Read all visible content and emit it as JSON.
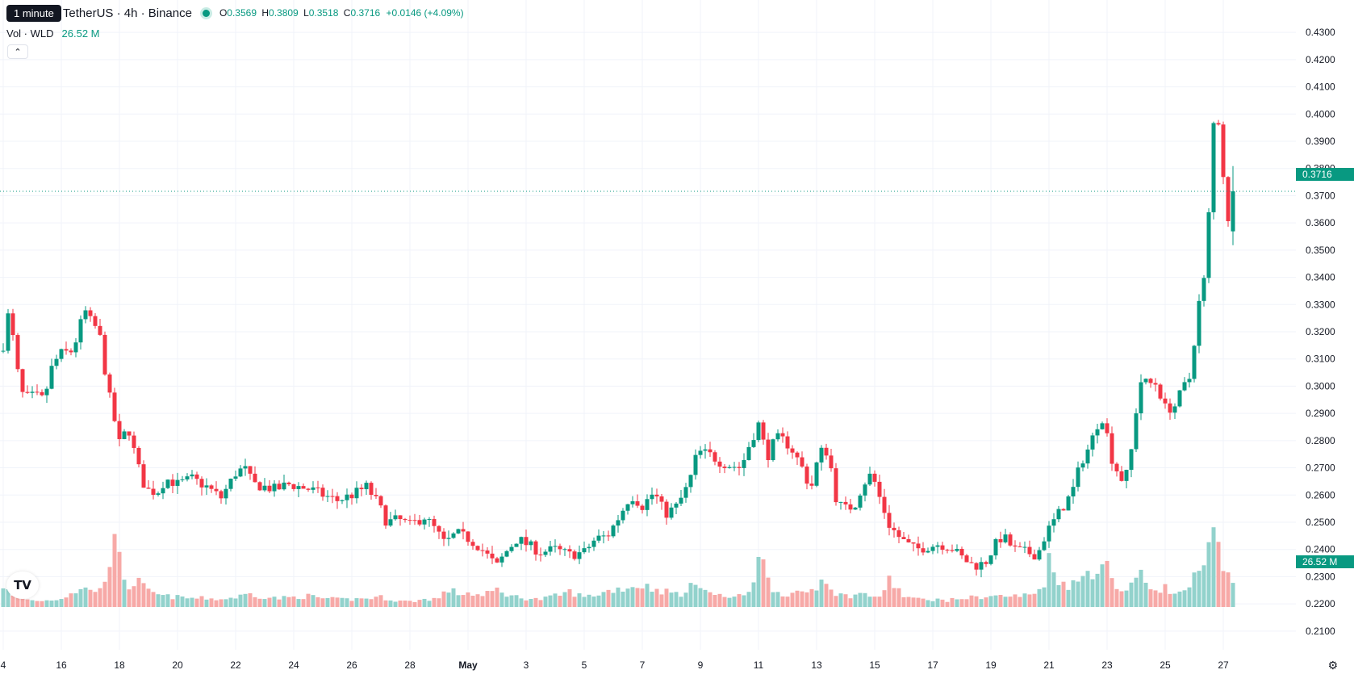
{
  "legend": {
    "tooltip": "1 minute",
    "symbol": "TetherUS · 4h · Binance",
    "o_label": "O",
    "o": "0.3569",
    "h_label": "H",
    "h": "0.3809",
    "l_label": "L",
    "l": "0.3518",
    "c_label": "C",
    "c": "0.3716",
    "change": "+0.0146 (+4.09%)",
    "vol_label": "Vol · WLD",
    "vol_value": "26.52 M",
    "collapse_icon": "chevron-up-icon"
  },
  "price_tag": "0.3716",
  "volume_tag": "26.52 M",
  "logo_icon": "tradingview-logo-icon",
  "settings_icon": "gear-icon",
  "colors": {
    "up": "#089981",
    "down": "#f23645",
    "up_vol": "#92d2cc",
    "down_vol": "#f7a9a7",
    "grid": "#f0f3fa"
  },
  "chart_data": {
    "type": "candlestick",
    "interval": "4h",
    "y_ticks": [
      "0.4300",
      "0.4200",
      "0.4100",
      "0.4000",
      "0.3900",
      "0.3800",
      "0.3700",
      "0.3600",
      "0.3500",
      "0.3400",
      "0.3300",
      "0.3200",
      "0.3100",
      "0.3000",
      "0.2900",
      "0.2800",
      "0.2700",
      "0.2600",
      "0.2500",
      "0.2400",
      "0.2300",
      "0.2200",
      "0.2100"
    ],
    "ylim": [
      0.2055,
      0.4345
    ],
    "x_ticks": [
      {
        "label": "4",
        "day": 14
      },
      {
        "label": "16",
        "day": 16
      },
      {
        "label": "18",
        "day": 18
      },
      {
        "label": "20",
        "day": 20
      },
      {
        "label": "22",
        "day": 22
      },
      {
        "label": "24",
        "day": 24
      },
      {
        "label": "26",
        "day": 26
      },
      {
        "label": "28",
        "day": 28
      },
      {
        "label": "May",
        "day": 30
      },
      {
        "label": "3",
        "day": 32
      },
      {
        "label": "5",
        "day": 34
      },
      {
        "label": "7",
        "day": 36
      },
      {
        "label": "9",
        "day": 38
      },
      {
        "label": "11",
        "day": 40
      },
      {
        "label": "13",
        "day": 42
      },
      {
        "label": "15",
        "day": 44
      },
      {
        "label": "17",
        "day": 46
      },
      {
        "label": "19",
        "day": 48
      },
      {
        "label": "21",
        "day": 50
      },
      {
        "label": "23",
        "day": 52
      },
      {
        "label": "25",
        "day": 54
      },
      {
        "label": "27",
        "day": 56
      }
    ],
    "close_anchors": [
      [
        14.0,
        0.315
      ],
      [
        14.2,
        0.328
      ],
      [
        14.5,
        0.305
      ],
      [
        14.7,
        0.2955
      ],
      [
        15.1,
        0.2965
      ],
      [
        15.4,
        0.295
      ],
      [
        15.7,
        0.308
      ],
      [
        16.0,
        0.312
      ],
      [
        16.4,
        0.313
      ],
      [
        16.8,
        0.328
      ],
      [
        17.0,
        0.324
      ],
      [
        17.3,
        0.32
      ],
      [
        17.6,
        0.299
      ],
      [
        17.8,
        0.289
      ],
      [
        18.0,
        0.279
      ],
      [
        18.3,
        0.285
      ],
      [
        18.6,
        0.272
      ],
      [
        18.9,
        0.262
      ],
      [
        19.3,
        0.261
      ],
      [
        19.6,
        0.266
      ],
      [
        20.0,
        0.264
      ],
      [
        20.5,
        0.266
      ],
      [
        21.0,
        0.263
      ],
      [
        21.5,
        0.259
      ],
      [
        22.0,
        0.268
      ],
      [
        22.3,
        0.27
      ],
      [
        22.6,
        0.264
      ],
      [
        23.0,
        0.263
      ],
      [
        23.4,
        0.262
      ],
      [
        23.8,
        0.264
      ],
      [
        24.2,
        0.263
      ],
      [
        24.6,
        0.262
      ],
      [
        25.0,
        0.26
      ],
      [
        25.5,
        0.258
      ],
      [
        26.0,
        0.26
      ],
      [
        26.5,
        0.263
      ],
      [
        26.9,
        0.257
      ],
      [
        27.2,
        0.25
      ],
      [
        27.6,
        0.251
      ],
      [
        28.0,
        0.249
      ],
      [
        28.5,
        0.252
      ],
      [
        28.9,
        0.247
      ],
      [
        29.2,
        0.242
      ],
      [
        29.6,
        0.246
      ],
      [
        30.0,
        0.244
      ],
      [
        30.4,
        0.241
      ],
      [
        30.8,
        0.236
      ],
      [
        31.0,
        0.234
      ],
      [
        31.3,
        0.239
      ],
      [
        31.7,
        0.244
      ],
      [
        32.0,
        0.242
      ],
      [
        32.5,
        0.239
      ],
      [
        33.0,
        0.24
      ],
      [
        33.5,
        0.238
      ],
      [
        34.0,
        0.239
      ],
      [
        34.4,
        0.244
      ],
      [
        34.8,
        0.245
      ],
      [
        35.2,
        0.252
      ],
      [
        35.6,
        0.26
      ],
      [
        36.0,
        0.256
      ],
      [
        36.4,
        0.261
      ],
      [
        36.8,
        0.253
      ],
      [
        37.2,
        0.256
      ],
      [
        37.6,
        0.264
      ],
      [
        37.9,
        0.276
      ],
      [
        38.3,
        0.275
      ],
      [
        38.7,
        0.272
      ],
      [
        39.0,
        0.271
      ],
      [
        39.4,
        0.27
      ],
      [
        39.7,
        0.279
      ],
      [
        40.0,
        0.286
      ],
      [
        40.3,
        0.274
      ],
      [
        40.6,
        0.281
      ],
      [
        40.9,
        0.28
      ],
      [
        41.2,
        0.276
      ],
      [
        41.5,
        0.27
      ],
      [
        41.8,
        0.262
      ],
      [
        42.1,
        0.276
      ],
      [
        42.4,
        0.276
      ],
      [
        42.7,
        0.257
      ],
      [
        43.0,
        0.255
      ],
      [
        43.3,
        0.256
      ],
      [
        43.6,
        0.264
      ],
      [
        43.9,
        0.268
      ],
      [
        44.2,
        0.258
      ],
      [
        44.5,
        0.249
      ],
      [
        44.8,
        0.245
      ],
      [
        45.1,
        0.242
      ],
      [
        45.4,
        0.24
      ],
      [
        45.8,
        0.241
      ],
      [
        46.2,
        0.242
      ],
      [
        46.6,
        0.241
      ],
      [
        47.0,
        0.237
      ],
      [
        47.4,
        0.234
      ],
      [
        47.8,
        0.235
      ],
      [
        48.1,
        0.241
      ],
      [
        48.4,
        0.245
      ],
      [
        48.8,
        0.24
      ],
      [
        49.2,
        0.239
      ],
      [
        49.6,
        0.238
      ],
      [
        49.9,
        0.246
      ],
      [
        50.2,
        0.251
      ],
      [
        50.5,
        0.256
      ],
      [
        50.8,
        0.261
      ],
      [
        51.1,
        0.272
      ],
      [
        51.4,
        0.278
      ],
      [
        51.7,
        0.287
      ],
      [
        51.9,
        0.289
      ],
      [
        52.1,
        0.275
      ],
      [
        52.3,
        0.27
      ],
      [
        52.6,
        0.264
      ],
      [
        52.9,
        0.28
      ],
      [
        53.1,
        0.302
      ],
      [
        53.4,
        0.301
      ],
      [
        53.7,
        0.301
      ],
      [
        54.0,
        0.292
      ],
      [
        54.3,
        0.292
      ],
      [
        54.6,
        0.299
      ],
      [
        54.9,
        0.304
      ],
      [
        55.1,
        0.329
      ],
      [
        55.3,
        0.334
      ],
      [
        55.5,
        0.363
      ],
      [
        55.7,
        0.403
      ],
      [
        55.8,
        0.404
      ],
      [
        55.9,
        0.384
      ],
      [
        56.0,
        0.378
      ],
      [
        56.2,
        0.356
      ],
      [
        56.4,
        0.3716
      ]
    ],
    "vol_anchors": [
      [
        14.0,
        20
      ],
      [
        14.3,
        10
      ],
      [
        15.0,
        6
      ],
      [
        15.5,
        6
      ],
      [
        16.0,
        8
      ],
      [
        16.4,
        14
      ],
      [
        16.8,
        16
      ],
      [
        17.0,
        18
      ],
      [
        17.3,
        12
      ],
      [
        17.6,
        38
      ],
      [
        17.8,
        58
      ],
      [
        18.0,
        42
      ],
      [
        18.3,
        18
      ],
      [
        18.6,
        24
      ],
      [
        19.0,
        14
      ],
      [
        19.5,
        10
      ],
      [
        20.0,
        9
      ],
      [
        20.5,
        8
      ],
      [
        21.0,
        8
      ],
      [
        21.5,
        7
      ],
      [
        22.0,
        9
      ],
      [
        22.5,
        12
      ],
      [
        23.0,
        9
      ],
      [
        23.5,
        8
      ],
      [
        24.0,
        9
      ],
      [
        24.5,
        10
      ],
      [
        25.0,
        8
      ],
      [
        25.5,
        7
      ],
      [
        26.0,
        7
      ],
      [
        26.5,
        8
      ],
      [
        27.0,
        9
      ],
      [
        27.5,
        6
      ],
      [
        28.0,
        5
      ],
      [
        28.5,
        7
      ],
      [
        29.0,
        8
      ],
      [
        29.3,
        16
      ],
      [
        29.7,
        12
      ],
      [
        30.0,
        13
      ],
      [
        30.5,
        10
      ],
      [
        31.0,
        16
      ],
      [
        31.5,
        10
      ],
      [
        32.0,
        8
      ],
      [
        32.5,
        7
      ],
      [
        33.0,
        10
      ],
      [
        33.5,
        14
      ],
      [
        34.0,
        9
      ],
      [
        34.5,
        12
      ],
      [
        35.0,
        16
      ],
      [
        35.5,
        18
      ],
      [
        36.0,
        20
      ],
      [
        36.5,
        16
      ],
      [
        37.0,
        13
      ],
      [
        37.5,
        12
      ],
      [
        37.9,
        26
      ],
      [
        38.3,
        13
      ],
      [
        38.7,
        10
      ],
      [
        39.0,
        9
      ],
      [
        39.5,
        10
      ],
      [
        39.8,
        20
      ],
      [
        40.0,
        56
      ],
      [
        40.3,
        25
      ],
      [
        40.6,
        14
      ],
      [
        41.0,
        12
      ],
      [
        41.5,
        12
      ],
      [
        42.0,
        18
      ],
      [
        42.3,
        30
      ],
      [
        42.6,
        13
      ],
      [
        43.0,
        10
      ],
      [
        43.5,
        12
      ],
      [
        44.0,
        10
      ],
      [
        44.3,
        10
      ],
      [
        44.5,
        26
      ],
      [
        45.0,
        10
      ],
      [
        45.5,
        7
      ],
      [
        46.0,
        7
      ],
      [
        46.5,
        6
      ],
      [
        47.0,
        8
      ],
      [
        47.5,
        9
      ],
      [
        48.0,
        10
      ],
      [
        48.5,
        10
      ],
      [
        49.0,
        10
      ],
      [
        49.5,
        12
      ],
      [
        49.8,
        20
      ],
      [
        50.0,
        42
      ],
      [
        50.3,
        27
      ],
      [
        50.6,
        20
      ],
      [
        51.0,
        22
      ],
      [
        51.3,
        33
      ],
      [
        51.6,
        34
      ],
      [
        51.9,
        42
      ],
      [
        52.1,
        30
      ],
      [
        52.5,
        14
      ],
      [
        52.8,
        20
      ],
      [
        53.1,
        30
      ],
      [
        53.4,
        20
      ],
      [
        53.7,
        16
      ],
      [
        54.0,
        18
      ],
      [
        54.4,
        10
      ],
      [
        54.7,
        16
      ],
      [
        55.0,
        26
      ],
      [
        55.3,
        30
      ],
      [
        55.5,
        54
      ],
      [
        55.7,
        68
      ],
      [
        55.8,
        55
      ],
      [
        56.0,
        30
      ],
      [
        56.2,
        27
      ],
      [
        56.4,
        26
      ]
    ]
  }
}
